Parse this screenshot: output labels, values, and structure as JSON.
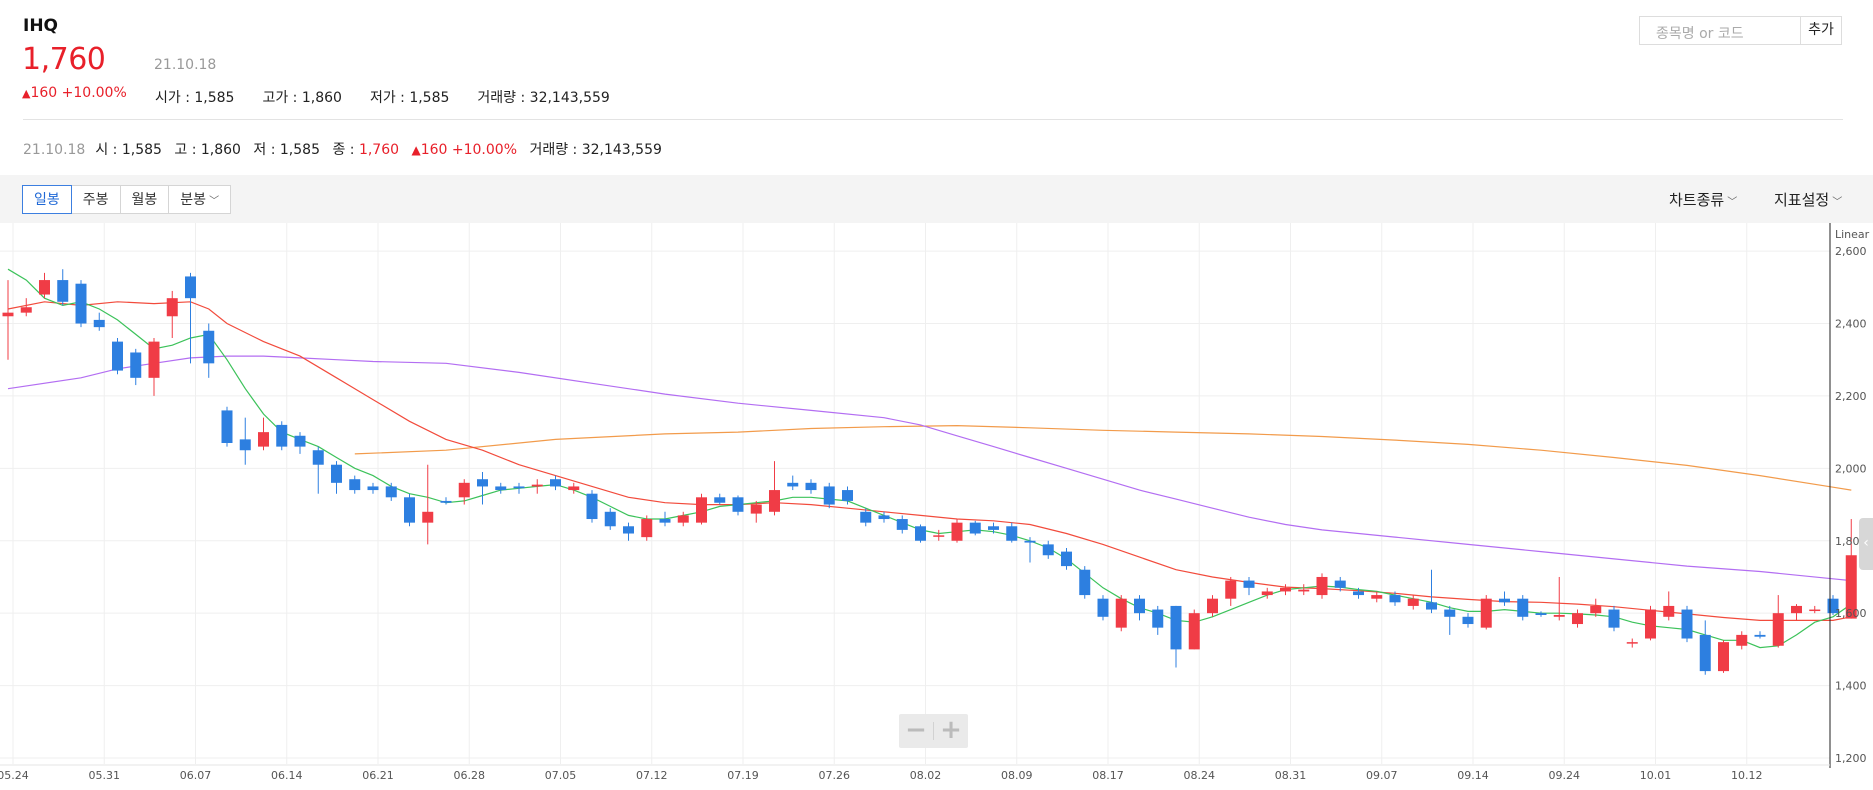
{
  "header": {
    "name": "IHQ",
    "price": "1,760",
    "change_arrow": "▲",
    "change_value": "160",
    "change_pct": "+10.00%",
    "date": "21.10.18",
    "open": "시가 : 1,585",
    "high": "고가 : 1,860",
    "low": "저가 : 1,585",
    "volume": "거래량 : 32,143,559"
  },
  "search": {
    "placeholder": "종목명 or 코드",
    "add_label": "추가"
  },
  "info": {
    "date": "21.10.18",
    "open": "시 : 1,585",
    "high": "고 : 1,860",
    "low": "저 : 1,585",
    "close_label": "종 : ",
    "close_value": "1,760",
    "change_arrow": "▲",
    "change": "160 +10.00%",
    "volume": "거래량 : 32,143,559"
  },
  "toolbar": {
    "tabs": [
      "일봉",
      "주봉",
      "월봉",
      "분봉"
    ],
    "active_tab": "일봉",
    "chart_type": "차트종류",
    "indicator": "지표설정"
  },
  "colors": {
    "up": "#f03c46",
    "down": "#2d7fe0",
    "ma5": "#3cc25a",
    "ma20": "#f24b3c",
    "ma60": "#b36ef2",
    "ma120": "#f29b4b"
  },
  "chart_data": {
    "type": "candlestick",
    "scale": "Linear",
    "ylim": [
      1200,
      2650
    ],
    "yticks": [
      1200,
      1400,
      1600,
      1800,
      2000,
      2200,
      2400,
      2600
    ],
    "ytick_labels": [
      "1,200",
      "1,400",
      "1,600",
      "1,800",
      "2,000",
      "2,200",
      "2,400",
      "2,600"
    ],
    "xticks": [
      {
        "label": "05.24",
        "i": 0
      },
      {
        "label": "05.31",
        "i": 5
      },
      {
        "label": "06.07",
        "i": 10
      },
      {
        "label": "06.14",
        "i": 15
      },
      {
        "label": "06.21",
        "i": 20
      },
      {
        "label": "06.28",
        "i": 25
      },
      {
        "label": "07.05",
        "i": 30
      },
      {
        "label": "07.12",
        "i": 35
      },
      {
        "label": "07.19",
        "i": 40
      },
      {
        "label": "07.26",
        "i": 45
      },
      {
        "label": "08.02",
        "i": 50
      },
      {
        "label": "08.09",
        "i": 55
      },
      {
        "label": "08.17",
        "i": 60
      },
      {
        "label": "08.24",
        "i": 65
      },
      {
        "label": "08.31",
        "i": 70
      },
      {
        "label": "09.07",
        "i": 75
      },
      {
        "label": "09.14",
        "i": 80
      },
      {
        "label": "09.24",
        "i": 85
      },
      {
        "label": "10.01",
        "i": 90
      },
      {
        "label": "10.12",
        "i": 95
      }
    ],
    "candles": [
      [
        2420,
        2430,
        2300,
        2520
      ],
      [
        2430,
        2445,
        2420,
        2470
      ],
      [
        2480,
        2520,
        2470,
        2540
      ],
      [
        2520,
        2460,
        2450,
        2550
      ],
      [
        2510,
        2400,
        2390,
        2520
      ],
      [
        2410,
        2390,
        2380,
        2430
      ],
      [
        2350,
        2270,
        2260,
        2360
      ],
      [
        2320,
        2250,
        2230,
        2330
      ],
      [
        2250,
        2350,
        2200,
        2360
      ],
      [
        2420,
        2470,
        2360,
        2490
      ],
      [
        2530,
        2470,
        2290,
        2540
      ],
      [
        2380,
        2290,
        2250,
        2400
      ],
      [
        2160,
        2070,
        2060,
        2170
      ],
      [
        2080,
        2050,
        2010,
        2140
      ],
      [
        2060,
        2100,
        2050,
        2140
      ],
      [
        2120,
        2060,
        2050,
        2130
      ],
      [
        2090,
        2060,
        2040,
        2100
      ],
      [
        2050,
        2010,
        1930,
        2060
      ],
      [
        2010,
        1960,
        1930,
        2020
      ],
      [
        1970,
        1940,
        1930,
        1980
      ],
      [
        1950,
        1940,
        1930,
        1960
      ],
      [
        1950,
        1920,
        1910,
        1960
      ],
      [
        1920,
        1850,
        1840,
        1930
      ],
      [
        1850,
        1880,
        1790,
        2010
      ],
      [
        1910,
        1905,
        1900,
        1920
      ],
      [
        1920,
        1960,
        1900,
        1970
      ],
      [
        1970,
        1950,
        1900,
        1990
      ],
      [
        1950,
        1940,
        1930,
        1960
      ],
      [
        1950,
        1945,
        1930,
        1960
      ],
      [
        1950,
        1955,
        1930,
        1970
      ],
      [
        1970,
        1950,
        1940,
        1980
      ],
      [
        1940,
        1950,
        1930,
        1960
      ],
      [
        1930,
        1860,
        1850,
        1940
      ],
      [
        1880,
        1840,
        1830,
        1890
      ],
      [
        1840,
        1820,
        1800,
        1850
      ],
      [
        1810,
        1860,
        1800,
        1870
      ],
      [
        1860,
        1850,
        1840,
        1880
      ],
      [
        1850,
        1870,
        1840,
        1880
      ],
      [
        1850,
        1920,
        1845,
        1930
      ],
      [
        1920,
        1905,
        1900,
        1930
      ],
      [
        1920,
        1880,
        1870,
        1925
      ],
      [
        1875,
        1900,
        1850,
        1910
      ],
      [
        1880,
        1940,
        1870,
        2020
      ],
      [
        1960,
        1950,
        1940,
        1980
      ],
      [
        1960,
        1940,
        1930,
        1970
      ],
      [
        1950,
        1900,
        1890,
        1960
      ],
      [
        1940,
        1910,
        1900,
        1950
      ],
      [
        1880,
        1850,
        1840,
        1890
      ],
      [
        1870,
        1860,
        1850,
        1880
      ],
      [
        1860,
        1830,
        1820,
        1870
      ],
      [
        1840,
        1800,
        1795,
        1845
      ],
      [
        1815,
        1815,
        1800,
        1830
      ],
      [
        1800,
        1850,
        1795,
        1860
      ],
      [
        1850,
        1820,
        1815,
        1855
      ],
      [
        1840,
        1830,
        1820,
        1850
      ],
      [
        1840,
        1800,
        1795,
        1850
      ],
      [
        1800,
        1795,
        1740,
        1810
      ],
      [
        1790,
        1760,
        1750,
        1800
      ],
      [
        1770,
        1730,
        1720,
        1780
      ],
      [
        1720,
        1650,
        1640,
        1730
      ],
      [
        1640,
        1590,
        1580,
        1650
      ],
      [
        1560,
        1640,
        1550,
        1650
      ],
      [
        1640,
        1600,
        1580,
        1650
      ],
      [
        1610,
        1560,
        1540,
        1620
      ],
      [
        1620,
        1500,
        1450,
        1620
      ],
      [
        1500,
        1600,
        1500,
        1610
      ],
      [
        1600,
        1640,
        1590,
        1650
      ],
      [
        1640,
        1690,
        1620,
        1700
      ],
      [
        1690,
        1670,
        1650,
        1700
      ],
      [
        1650,
        1660,
        1640,
        1670
      ],
      [
        1660,
        1670,
        1650,
        1680
      ],
      [
        1660,
        1665,
        1650,
        1680
      ],
      [
        1650,
        1700,
        1640,
        1710
      ],
      [
        1690,
        1670,
        1660,
        1700
      ],
      [
        1660,
        1650,
        1640,
        1670
      ],
      [
        1640,
        1650,
        1630,
        1660
      ],
      [
        1650,
        1630,
        1620,
        1660
      ],
      [
        1620,
        1640,
        1610,
        1650
      ],
      [
        1630,
        1610,
        1600,
        1720
      ],
      [
        1610,
        1590,
        1540,
        1620
      ],
      [
        1590,
        1570,
        1560,
        1600
      ],
      [
        1560,
        1640,
        1555,
        1650
      ],
      [
        1640,
        1630,
        1620,
        1660
      ],
      [
        1640,
        1590,
        1580,
        1650
      ],
      [
        1600,
        1595,
        1590,
        1605
      ],
      [
        1590,
        1595,
        1580,
        1700
      ],
      [
        1570,
        1600,
        1560,
        1610
      ],
      [
        1600,
        1620,
        1590,
        1640
      ],
      [
        1610,
        1560,
        1550,
        1620
      ],
      [
        1520,
        1520,
        1505,
        1530
      ],
      [
        1530,
        1610,
        1525,
        1620
      ],
      [
        1590,
        1620,
        1580,
        1660
      ],
      [
        1610,
        1530,
        1520,
        1620
      ],
      [
        1540,
        1440,
        1430,
        1580
      ],
      [
        1440,
        1520,
        1435,
        1525
      ],
      [
        1510,
        1540,
        1500,
        1550
      ],
      [
        1540,
        1535,
        1530,
        1550
      ],
      [
        1510,
        1600,
        1505,
        1650
      ],
      [
        1600,
        1620,
        1580,
        1625
      ],
      [
        1610,
        1610,
        1600,
        1620
      ],
      [
        1640,
        1600,
        1595,
        1650
      ],
      [
        1585,
        1760,
        1585,
        1860
      ]
    ],
    "ma5": [
      [
        0,
        2550
      ],
      [
        1,
        2520
      ],
      [
        2,
        2470
      ],
      [
        3,
        2450
      ],
      [
        4,
        2460
      ],
      [
        5,
        2440
      ],
      [
        6,
        2410
      ],
      [
        7,
        2370
      ],
      [
        8,
        2330
      ],
      [
        9,
        2340
      ],
      [
        10,
        2360
      ],
      [
        11,
        2370
      ],
      [
        12,
        2300
      ],
      [
        13,
        2220
      ],
      [
        14,
        2150
      ],
      [
        15,
        2100
      ],
      [
        16,
        2080
      ],
      [
        17,
        2060
      ],
      [
        18,
        2030
      ],
      [
        19,
        2000
      ],
      [
        20,
        1980
      ],
      [
        21,
        1950
      ],
      [
        22,
        1930
      ],
      [
        23,
        1920
      ],
      [
        24,
        1905
      ],
      [
        25,
        1910
      ],
      [
        26,
        1925
      ],
      [
        27,
        1940
      ],
      [
        28,
        1945
      ],
      [
        29,
        1950
      ],
      [
        30,
        1955
      ],
      [
        31,
        1940
      ],
      [
        32,
        1920
      ],
      [
        33,
        1895
      ],
      [
        34,
        1870
      ],
      [
        35,
        1860
      ],
      [
        36,
        1860
      ],
      [
        37,
        1870
      ],
      [
        38,
        1880
      ],
      [
        39,
        1895
      ],
      [
        40,
        1900
      ],
      [
        41,
        1905
      ],
      [
        42,
        1910
      ],
      [
        43,
        1920
      ],
      [
        44,
        1920
      ],
      [
        45,
        1915
      ],
      [
        46,
        1910
      ],
      [
        47,
        1890
      ],
      [
        48,
        1870
      ],
      [
        49,
        1850
      ],
      [
        50,
        1830
      ],
      [
        51,
        1820
      ],
      [
        52,
        1825
      ],
      [
        53,
        1830
      ],
      [
        54,
        1825
      ],
      [
        55,
        1815
      ],
      [
        56,
        1800
      ],
      [
        57,
        1780
      ],
      [
        58,
        1750
      ],
      [
        59,
        1710
      ],
      [
        60,
        1670
      ],
      [
        61,
        1640
      ],
      [
        62,
        1615
      ],
      [
        63,
        1600
      ],
      [
        64,
        1580
      ],
      [
        65,
        1575
      ],
      [
        66,
        1590
      ],
      [
        67,
        1610
      ],
      [
        68,
        1630
      ],
      [
        69,
        1650
      ],
      [
        70,
        1665
      ],
      [
        71,
        1670
      ],
      [
        72,
        1675
      ],
      [
        73,
        1672
      ],
      [
        74,
        1665
      ],
      [
        75,
        1660
      ],
      [
        76,
        1650
      ],
      [
        77,
        1640
      ],
      [
        78,
        1630
      ],
      [
        79,
        1615
      ],
      [
        80,
        1605
      ],
      [
        81,
        1605
      ],
      [
        82,
        1610
      ],
      [
        83,
        1605
      ],
      [
        84,
        1600
      ],
      [
        85,
        1600
      ],
      [
        86,
        1598
      ],
      [
        87,
        1595
      ],
      [
        88,
        1590
      ],
      [
        89,
        1575
      ],
      [
        90,
        1565
      ],
      [
        91,
        1560
      ],
      [
        92,
        1555
      ],
      [
        93,
        1540
      ],
      [
        94,
        1525
      ],
      [
        95,
        1525
      ],
      [
        96,
        1505
      ],
      [
        97,
        1510
      ],
      [
        98,
        1540
      ],
      [
        99,
        1575
      ],
      [
        100,
        1590
      ],
      [
        101,
        1625
      ]
    ],
    "ma20": [
      [
        0,
        2440
      ],
      [
        2,
        2460
      ],
      [
        4,
        2450
      ],
      [
        6,
        2460
      ],
      [
        8,
        2455
      ],
      [
        10,
        2460
      ],
      [
        11,
        2440
      ],
      [
        12,
        2400
      ],
      [
        14,
        2350
      ],
      [
        16,
        2310
      ],
      [
        18,
        2250
      ],
      [
        20,
        2190
      ],
      [
        22,
        2130
      ],
      [
        24,
        2080
      ],
      [
        26,
        2050
      ],
      [
        28,
        2010
      ],
      [
        30,
        1980
      ],
      [
        32,
        1950
      ],
      [
        34,
        1920
      ],
      [
        36,
        1905
      ],
      [
        38,
        1900
      ],
      [
        40,
        1900
      ],
      [
        42,
        1905
      ],
      [
        44,
        1900
      ],
      [
        46,
        1890
      ],
      [
        48,
        1880
      ],
      [
        50,
        1870
      ],
      [
        52,
        1860
      ],
      [
        54,
        1855
      ],
      [
        56,
        1845
      ],
      [
        58,
        1820
      ],
      [
        60,
        1790
      ],
      [
        62,
        1755
      ],
      [
        64,
        1720
      ],
      [
        66,
        1700
      ],
      [
        68,
        1685
      ],
      [
        70,
        1672
      ],
      [
        72,
        1668
      ],
      [
        74,
        1662
      ],
      [
        76,
        1655
      ],
      [
        78,
        1645
      ],
      [
        80,
        1638
      ],
      [
        82,
        1632
      ],
      [
        84,
        1630
      ],
      [
        86,
        1625
      ],
      [
        88,
        1618
      ],
      [
        90,
        1608
      ],
      [
        92,
        1598
      ],
      [
        94,
        1588
      ],
      [
        96,
        1580
      ],
      [
        98,
        1580
      ],
      [
        100,
        1580
      ],
      [
        101,
        1590
      ]
    ],
    "ma60": [
      [
        0,
        2220
      ],
      [
        4,
        2250
      ],
      [
        6,
        2275
      ],
      [
        8,
        2290
      ],
      [
        10,
        2305
      ],
      [
        12,
        2310
      ],
      [
        14,
        2310
      ],
      [
        16,
        2305
      ],
      [
        18,
        2300
      ],
      [
        20,
        2295
      ],
      [
        24,
        2290
      ],
      [
        28,
        2265
      ],
      [
        32,
        2235
      ],
      [
        36,
        2205
      ],
      [
        40,
        2180
      ],
      [
        44,
        2160
      ],
      [
        48,
        2140
      ],
      [
        50,
        2120
      ],
      [
        52,
        2090
      ],
      [
        54,
        2060
      ],
      [
        56,
        2030
      ],
      [
        58,
        2000
      ],
      [
        60,
        1970
      ],
      [
        62,
        1940
      ],
      [
        64,
        1915
      ],
      [
        66,
        1890
      ],
      [
        68,
        1865
      ],
      [
        70,
        1845
      ],
      [
        72,
        1830
      ],
      [
        76,
        1810
      ],
      [
        80,
        1790
      ],
      [
        84,
        1770
      ],
      [
        88,
        1750
      ],
      [
        92,
        1730
      ],
      [
        96,
        1715
      ],
      [
        100,
        1695
      ],
      [
        101,
        1690
      ]
    ],
    "ma120": [
      [
        19,
        2040
      ],
      [
        24,
        2050
      ],
      [
        30,
        2080
      ],
      [
        36,
        2095
      ],
      [
        40,
        2100
      ],
      [
        44,
        2110
      ],
      [
        48,
        2115
      ],
      [
        52,
        2118
      ],
      [
        56,
        2112
      ],
      [
        60,
        2105
      ],
      [
        64,
        2100
      ],
      [
        68,
        2095
      ],
      [
        72,
        2088
      ],
      [
        76,
        2078
      ],
      [
        80,
        2066
      ],
      [
        84,
        2050
      ],
      [
        88,
        2030
      ],
      [
        92,
        2008
      ],
      [
        96,
        1980
      ],
      [
        100,
        1948
      ],
      [
        101,
        1940
      ]
    ],
    "axis_scale_label": "Linear"
  },
  "zoom": {
    "minus": "−",
    "plus": "+"
  },
  "side_tab_glyph": "‹"
}
